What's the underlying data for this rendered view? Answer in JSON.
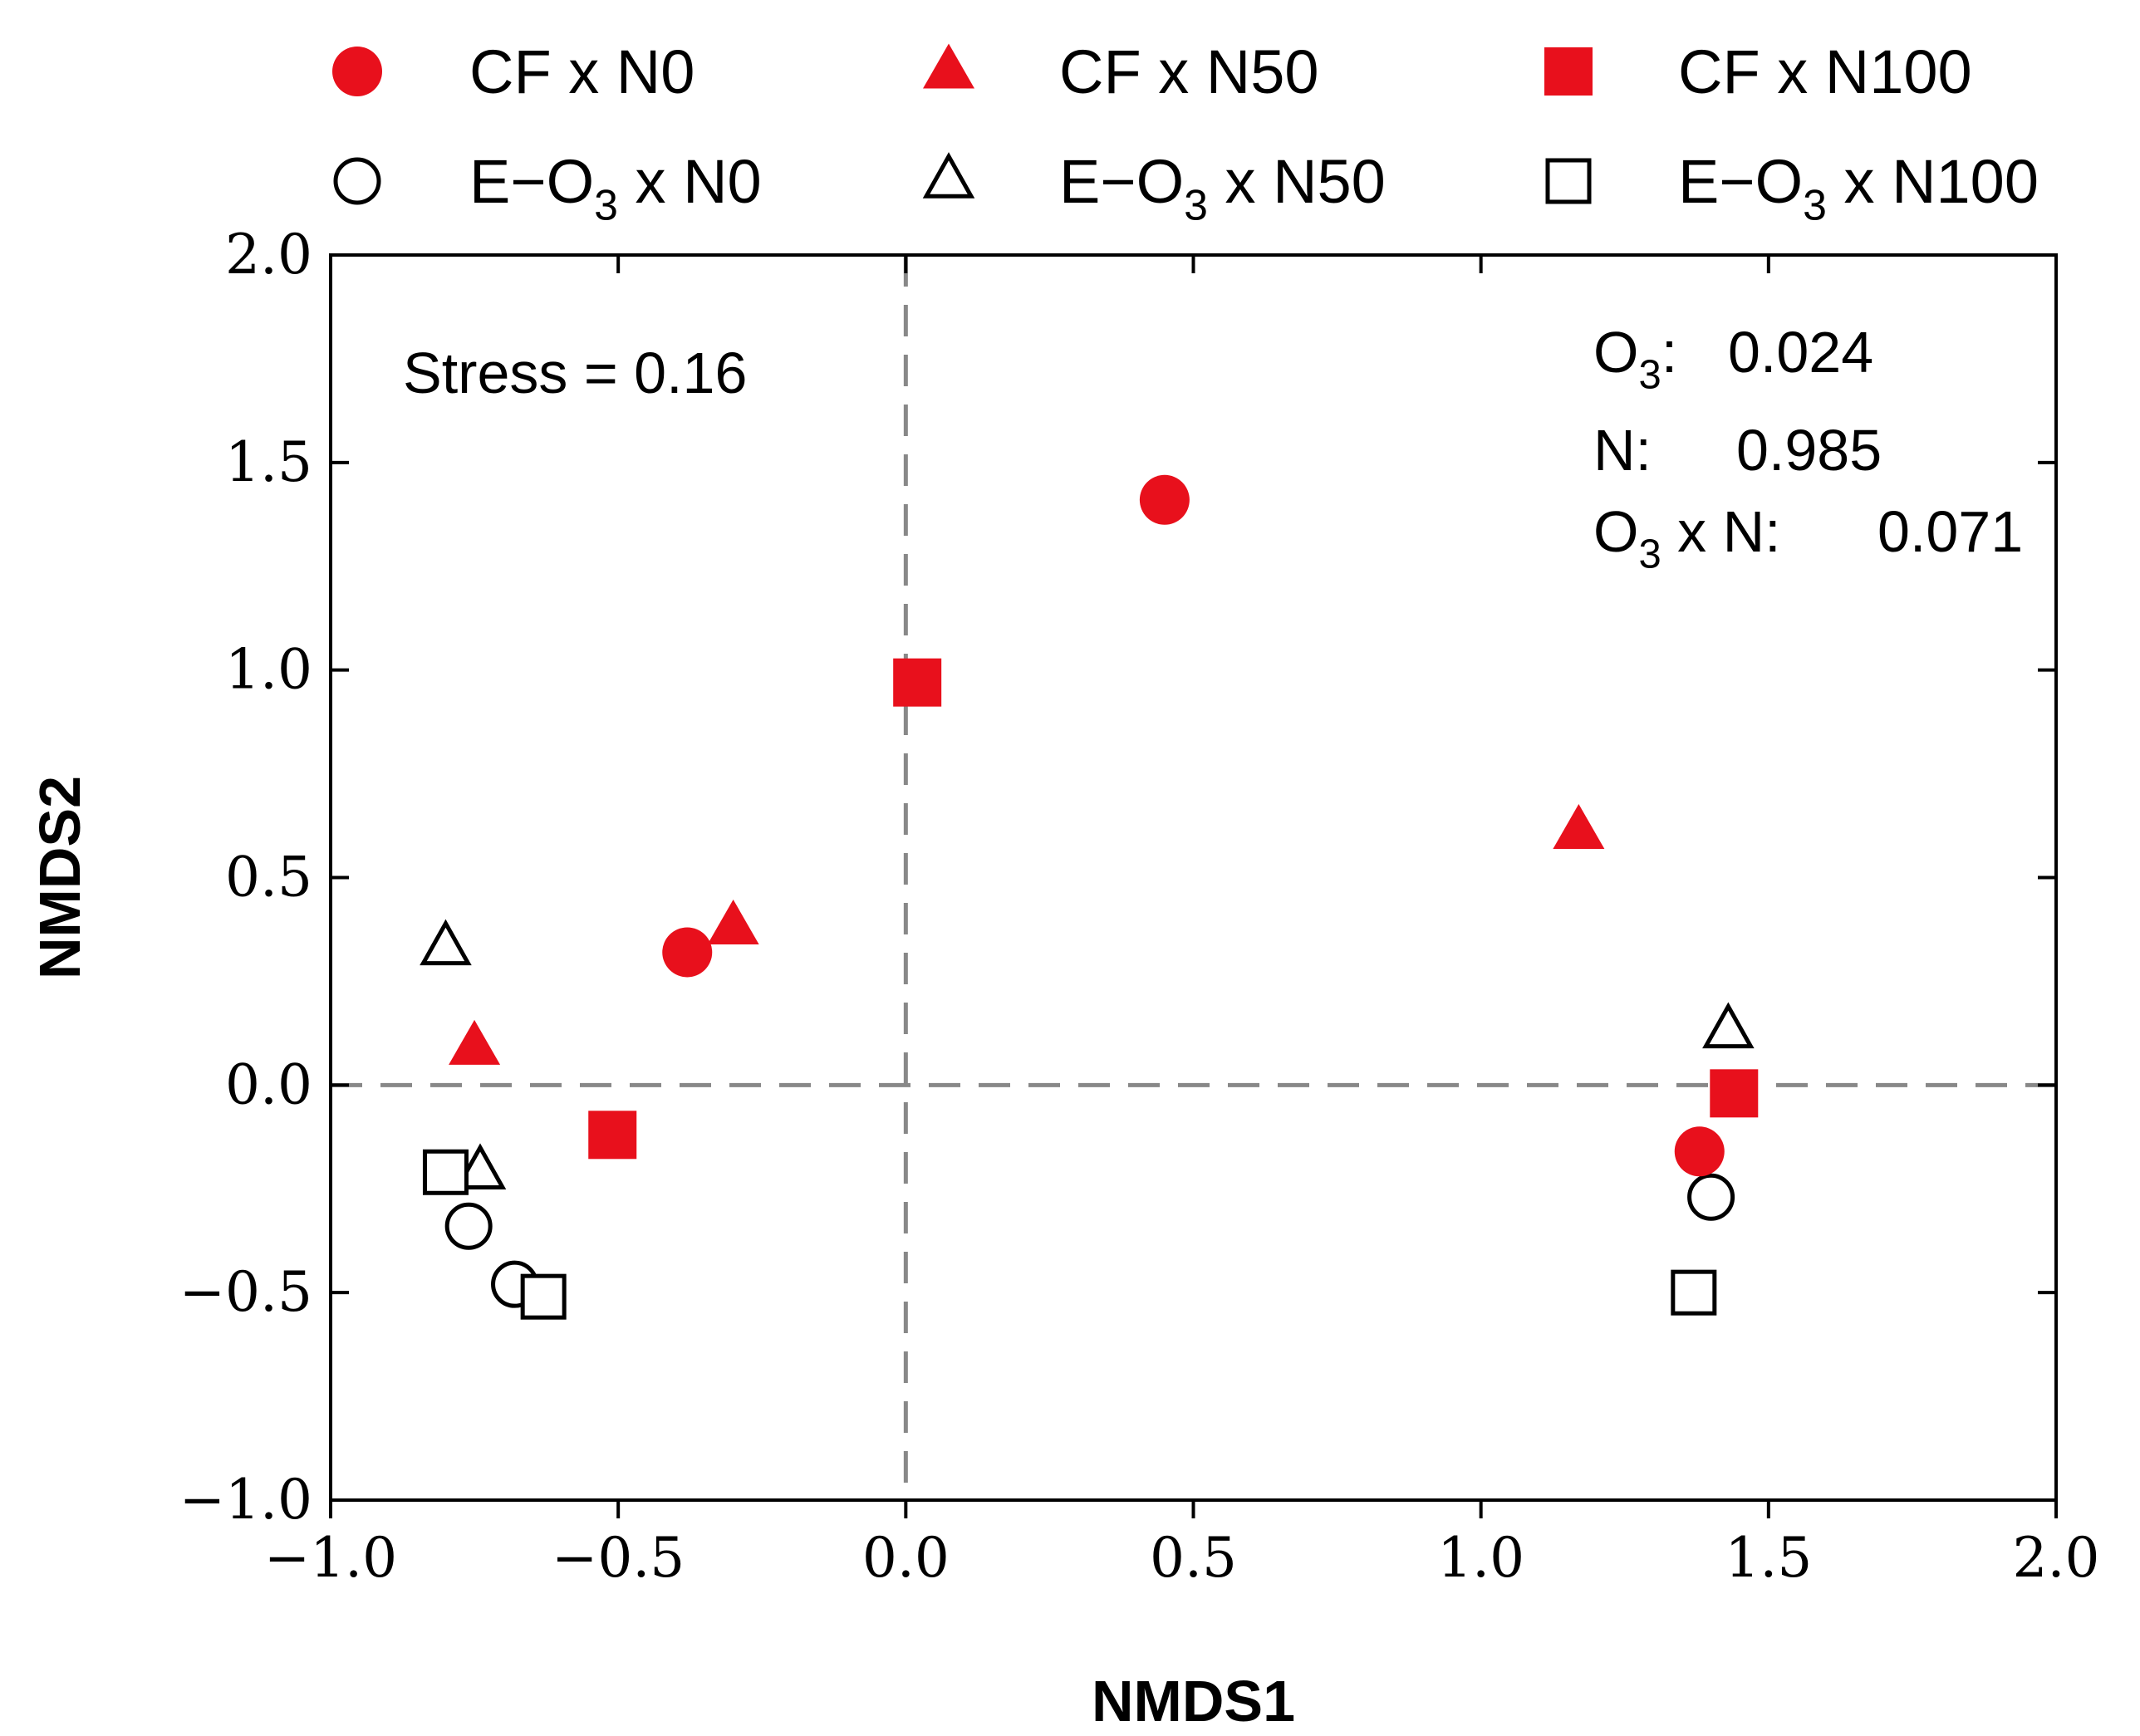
{
  "chart_data": {
    "type": "scatter",
    "title": "",
    "xlabel": "NMDS1",
    "ylabel": "NMDS2",
    "xlim": [
      -1.0,
      2.0
    ],
    "ylim": [
      -1.0,
      2.0
    ],
    "x_ticks": [
      -1.0,
      -0.5,
      0.0,
      0.5,
      1.0,
      1.5,
      2.0
    ],
    "y_ticks": [
      -1.0,
      -0.5,
      0.0,
      0.5,
      1.0,
      1.5,
      2.0
    ],
    "x_tick_labels": [
      "−1.0",
      "−0.5",
      "0.0",
      "0.5",
      "1.0",
      "1.5",
      "2.0"
    ],
    "y_tick_labels": [
      "−1.0",
      "−0.5",
      "0.0",
      "0.5",
      "1.0",
      "1.5",
      "2.0"
    ],
    "grid": false,
    "reference_lines": {
      "x": 0.0,
      "y": 0.0,
      "style": "dashed",
      "color": "#888888"
    },
    "legend_position": "top",
    "colors": {
      "cf": "#e8101c",
      "eo3": "#000000"
    },
    "series": [
      {
        "name": "CF x N0",
        "marker": "circle",
        "filled": true,
        "points": [
          {
            "x": 0.45,
            "y": 1.41
          },
          {
            "x": -0.38,
            "y": 0.32
          },
          {
            "x": 1.38,
            "y": -0.16
          }
        ]
      },
      {
        "name": "CF x N50",
        "marker": "triangle",
        "filled": true,
        "points": [
          {
            "x": 1.17,
            "y": 0.61
          },
          {
            "x": -0.3,
            "y": 0.38
          },
          {
            "x": -0.75,
            "y": 0.09
          }
        ]
      },
      {
        "name": "CF x N100",
        "marker": "square",
        "filled": true,
        "points": [
          {
            "x": 0.02,
            "y": 0.97
          },
          {
            "x": -0.51,
            "y": -0.12
          },
          {
            "x": 1.44,
            "y": -0.02
          }
        ]
      },
      {
        "name": "E−O3 x N0",
        "marker": "circle",
        "filled": false,
        "points": [
          {
            "x": -0.76,
            "y": -0.34
          },
          {
            "x": -0.68,
            "y": -0.48
          },
          {
            "x": 1.4,
            "y": -0.27
          }
        ]
      },
      {
        "name": "E−O3 x N50",
        "marker": "triangle",
        "filled": false,
        "points": [
          {
            "x": -0.8,
            "y": 0.33
          },
          {
            "x": -0.74,
            "y": -0.21
          },
          {
            "x": 1.43,
            "y": 0.13
          }
        ]
      },
      {
        "name": "E−O3 x N100",
        "marker": "square",
        "filled": false,
        "points": [
          {
            "x": -0.8,
            "y": -0.21
          },
          {
            "x": -0.63,
            "y": -0.51
          },
          {
            "x": 1.37,
            "y": -0.5
          }
        ]
      }
    ],
    "annotations": {
      "stress": "Stress = 0.16",
      "o3": {
        "label": "O",
        "sub": "3",
        "suffix": ":",
        "value": "0.024"
      },
      "n": {
        "label": "N:",
        "value": "0.985"
      },
      "o3xn": {
        "label": "O",
        "sub": "3",
        "suffix": " x N:",
        "value": "0.071"
      }
    },
    "legend_entries": [
      {
        "prefix": "CF x N0"
      },
      {
        "prefix": "CF x N50"
      },
      {
        "prefix": "CF x N100"
      },
      {
        "prefix": "E−O",
        "sub": "3",
        "suffix": " x N0"
      },
      {
        "prefix": "E−O",
        "sub": "3",
        "suffix": " x N50"
      },
      {
        "prefix": "E−O",
        "sub": "3",
        "suffix": " x N100"
      }
    ]
  }
}
